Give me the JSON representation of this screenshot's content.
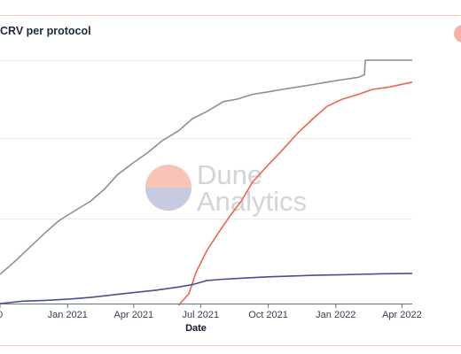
{
  "chart_data": {
    "type": "line",
    "title": "CRV per protocol",
    "xlabel": "Date",
    "ylabel": "",
    "x_ticks": [
      "0",
      "Jan 2021",
      "Apr 2021",
      "Jul 2021",
      "Oct 2021",
      "Jan 2022",
      "Apr 2022"
    ],
    "x_tick_dates": [
      "2020-10-01",
      "2021-01-01",
      "2021-04-01",
      "2021-07-01",
      "2021-10-01",
      "2022-01-01",
      "2022-04-01"
    ],
    "xlim": [
      "2020-10-01",
      "2022-04-15"
    ],
    "ylim": [
      0,
      100
    ],
    "grid": true,
    "colors": {
      "gray": "#8f8f8f",
      "red": "#f06548",
      "navy": "#4a4f96",
      "legend": "#f5b2a4"
    },
    "series": [
      {
        "color": "#8f8f8f",
        "points": [
          [
            "2020-10-01",
            12
          ],
          [
            "2020-10-20",
            17
          ],
          [
            "2020-11-10",
            23
          ],
          [
            "2020-12-01",
            29
          ],
          [
            "2020-12-20",
            34
          ],
          [
            "2021-01-10",
            38
          ],
          [
            "2021-02-01",
            42
          ],
          [
            "2021-02-20",
            47
          ],
          [
            "2021-03-10",
            53
          ],
          [
            "2021-04-01",
            58
          ],
          [
            "2021-04-20",
            62
          ],
          [
            "2021-05-10",
            67
          ],
          [
            "2021-06-01",
            71
          ],
          [
            "2021-06-20",
            76
          ],
          [
            "2021-07-10",
            79
          ],
          [
            "2021-08-01",
            83
          ],
          [
            "2021-08-20",
            84
          ],
          [
            "2021-09-10",
            86
          ],
          [
            "2021-10-01",
            87
          ],
          [
            "2021-10-20",
            88
          ],
          [
            "2021-11-10",
            89
          ],
          [
            "2021-12-01",
            90
          ],
          [
            "2021-12-20",
            91
          ],
          [
            "2022-01-10",
            92
          ],
          [
            "2022-02-01",
            93
          ],
          [
            "2022-02-09",
            94
          ],
          [
            "2022-02-10",
            100
          ],
          [
            "2022-03-10",
            100
          ],
          [
            "2022-04-15",
            100
          ]
        ]
      },
      {
        "color": "#f06548",
        "points": [
          [
            "2021-06-01",
            -8
          ],
          [
            "2021-06-15",
            4
          ],
          [
            "2021-06-25",
            13
          ],
          [
            "2021-07-10",
            22
          ],
          [
            "2021-07-25",
            29
          ],
          [
            "2021-08-10",
            36
          ],
          [
            "2021-08-25",
            42
          ],
          [
            "2021-09-10",
            50
          ],
          [
            "2021-10-01",
            57
          ],
          [
            "2021-10-20",
            63
          ],
          [
            "2021-11-10",
            70
          ],
          [
            "2021-12-01",
            76
          ],
          [
            "2021-12-20",
            81
          ],
          [
            "2022-01-10",
            84
          ],
          [
            "2022-02-01",
            86
          ],
          [
            "2022-02-20",
            88
          ],
          [
            "2022-03-15",
            89
          ],
          [
            "2022-04-15",
            91
          ]
        ]
      },
      {
        "color": "#4a4f96",
        "points": [
          [
            "2020-10-01",
            0
          ],
          [
            "2020-11-01",
            1
          ],
          [
            "2020-12-01",
            1.3
          ],
          [
            "2021-01-01",
            1.8
          ],
          [
            "2021-02-01",
            2.5
          ],
          [
            "2021-03-01",
            3.5
          ],
          [
            "2021-04-01",
            4.5
          ],
          [
            "2021-05-01",
            5.5
          ],
          [
            "2021-06-01",
            6.8
          ],
          [
            "2021-06-20",
            7.8
          ],
          [
            "2021-07-10",
            9.5
          ],
          [
            "2021-08-01",
            10
          ],
          [
            "2021-09-01",
            10.5
          ],
          [
            "2021-10-01",
            11
          ],
          [
            "2021-11-01",
            11.3
          ],
          [
            "2021-12-01",
            11.6
          ],
          [
            "2022-01-01",
            11.8
          ],
          [
            "2022-02-01",
            12
          ],
          [
            "2022-03-01",
            12.2
          ],
          [
            "2022-04-15",
            12.4
          ]
        ]
      }
    ],
    "watermark": {
      "line1": "Dune",
      "line2": "Analytics",
      "colors": [
        "#f9c4b8",
        "#c7cbe2"
      ]
    }
  }
}
